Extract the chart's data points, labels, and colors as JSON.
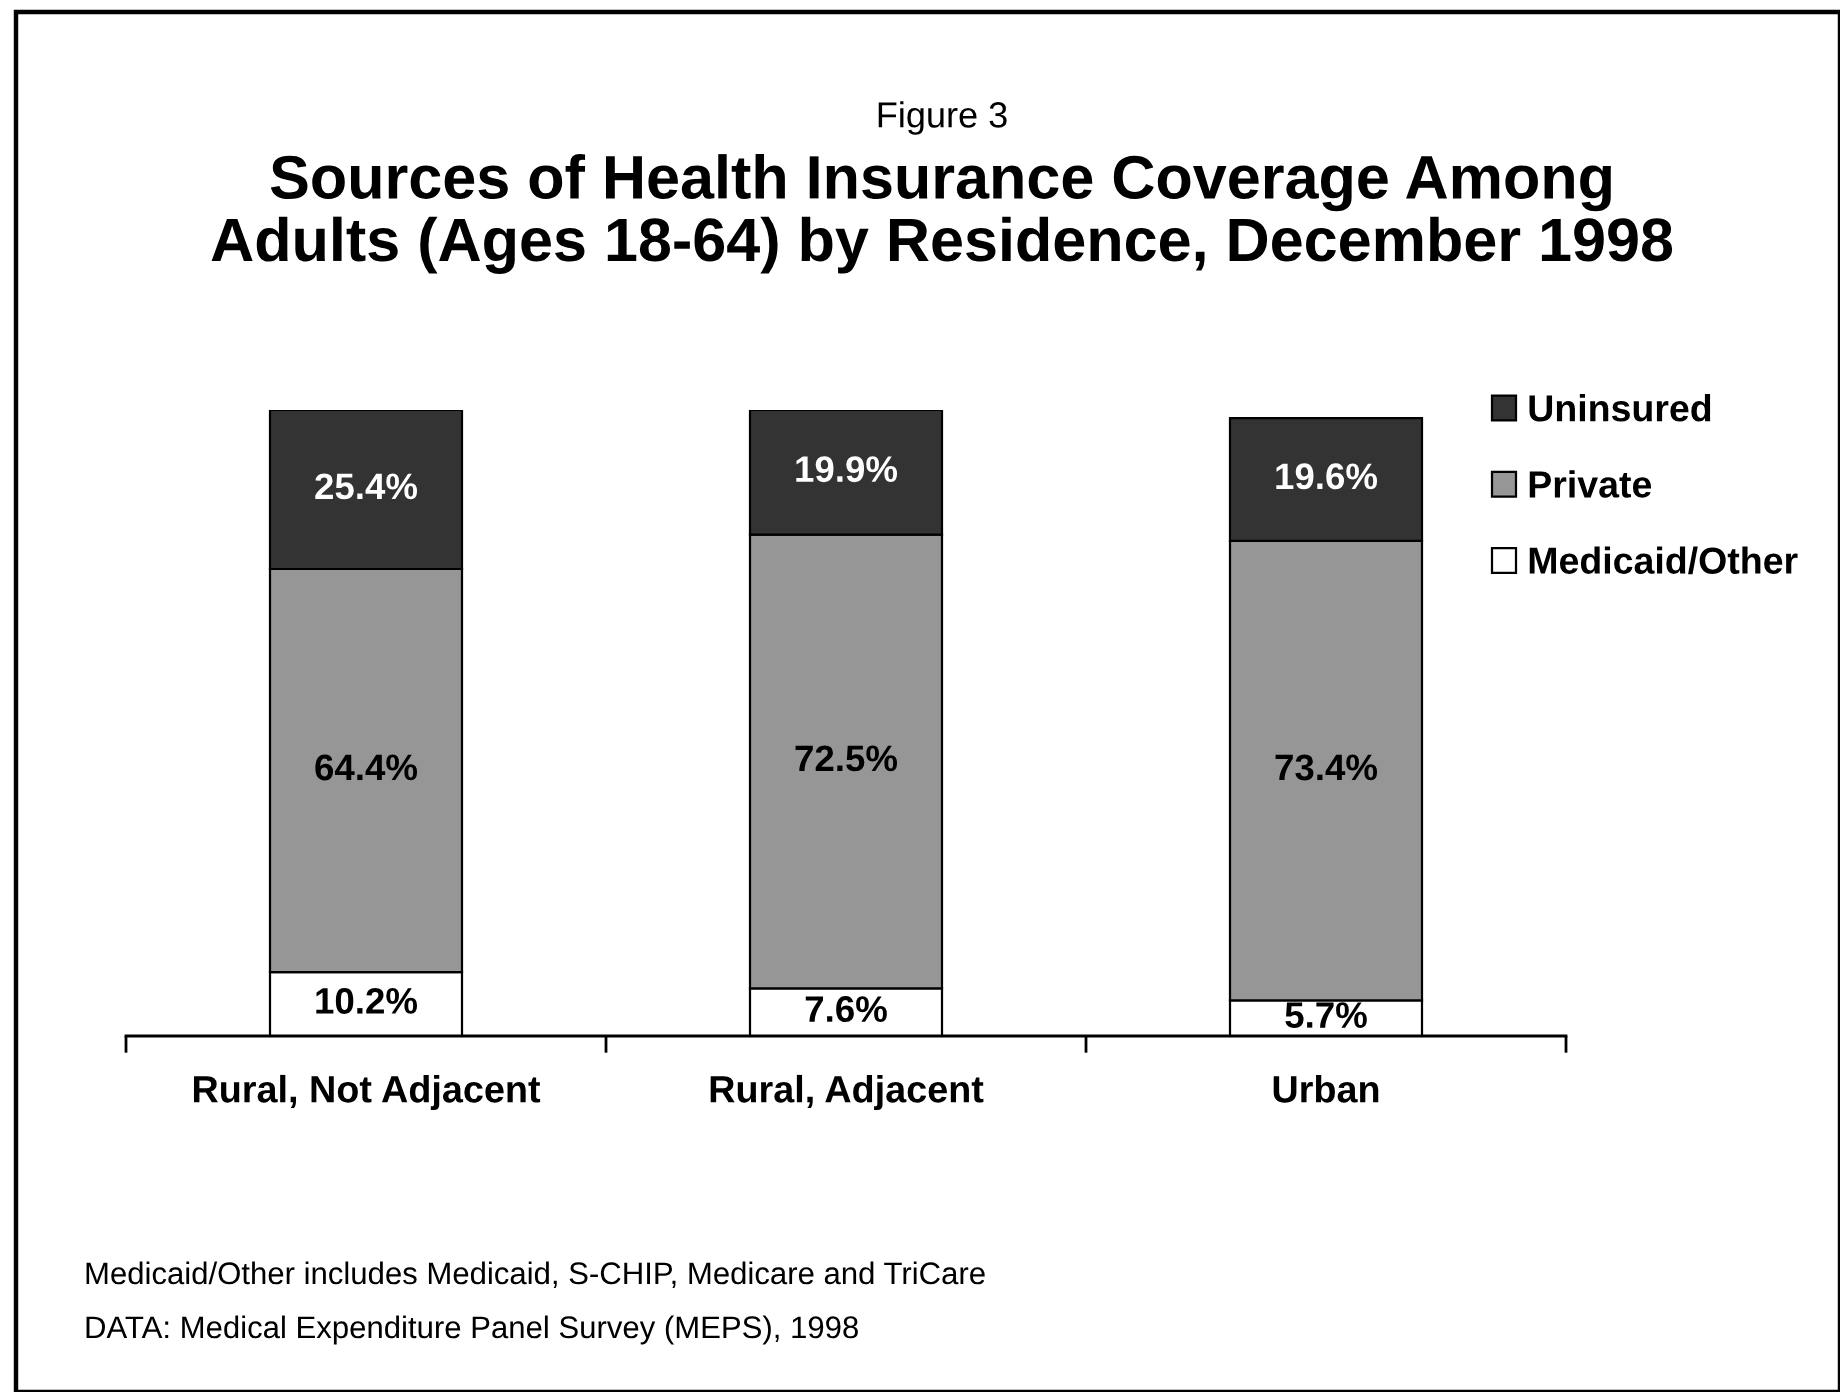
{
  "chart_data": {
    "type": "bar",
    "subtitle": "Figure 3",
    "title": "Sources of Health Insurance Coverage Among Adults (Ages 18-64) by Residence, December 1998",
    "categories": [
      "Rural, Not Adjacent",
      "Rural, Adjacent",
      "Urban"
    ],
    "stacked": true,
    "series": [
      {
        "name": "Medicaid/Other",
        "color": "#ffffff",
        "values": [
          10.2,
          7.6,
          5.7
        ],
        "value_labels": [
          "10.2%",
          "7.6%",
          "5.7%"
        ]
      },
      {
        "name": "Private",
        "color": "#969696",
        "values": [
          64.4,
          72.5,
          73.4
        ],
        "value_labels": [
          "64.4%",
          "72.5%",
          "73.4%"
        ]
      },
      {
        "name": "Uninsured",
        "color": "#333333",
        "values": [
          25.4,
          19.9,
          19.6
        ],
        "value_labels": [
          "25.4%",
          "19.9%",
          "19.6%"
        ]
      }
    ],
    "legend": "top right",
    "tick_labels": "x",
    "annotations": [
      "Medicaid/Other includes Medicaid, S-CHIP, Medicare and TriCare",
      "DATA: Medical Expenditure Panel Survey (MEPS), 1998"
    ]
  }
}
